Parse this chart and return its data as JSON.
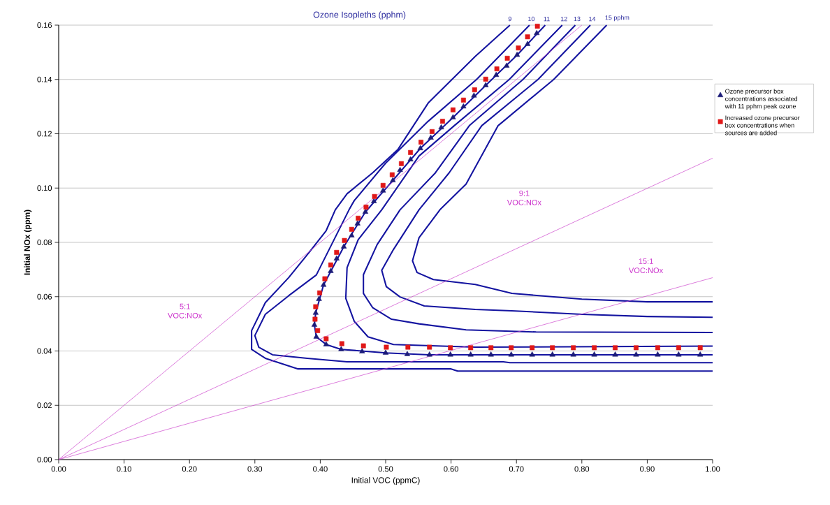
{
  "chart_data": {
    "type": "line",
    "title": "Ozone Isopleths (pphm)",
    "xlabel": "Initial VOC (ppmC)",
    "ylabel": "Initial NOx (ppm)",
    "xlim": [
      0,
      1
    ],
    "ylim": [
      0,
      0.16
    ],
    "xticks": [
      {
        "value": 0,
        "label": "0.00"
      },
      {
        "value": 0.1,
        "label": "0.10"
      },
      {
        "value": 0.2,
        "label": "0.20"
      },
      {
        "value": 0.3,
        "label": "0.30"
      },
      {
        "value": 0.4,
        "label": "0.40"
      },
      {
        "value": 0.5,
        "label": "0.50"
      },
      {
        "value": 0.6,
        "label": "0.60"
      },
      {
        "value": 0.7,
        "label": "0.70"
      },
      {
        "value": 0.8,
        "label": "0.80"
      },
      {
        "value": 0.9,
        "label": "0.90"
      },
      {
        "value": 1,
        "label": "1.00"
      }
    ],
    "yticks": [
      {
        "value": 0,
        "label": "0.00"
      },
      {
        "value": 0.02,
        "label": "0.02"
      },
      {
        "value": 0.04,
        "label": "0.04"
      },
      {
        "value": 0.06,
        "label": "0.06"
      },
      {
        "value": 0.08,
        "label": "0.08"
      },
      {
        "value": 0.1,
        "label": "0.10"
      },
      {
        "value": 0.12,
        "label": "0.12"
      },
      {
        "value": 0.14,
        "label": "0.14"
      },
      {
        "value": 0.16,
        "label": "0.16"
      }
    ],
    "grid": "y",
    "legend": "right",
    "series": [
      {
        "name": "9",
        "color": "#1414a0",
        "marker": "none",
        "x": [
          0.69,
          0.637,
          0.565,
          0.519,
          0.48,
          0.441,
          0.423,
          0.409,
          0.384,
          0.352,
          0.316,
          0.295,
          0.295,
          0.316,
          0.366,
          0.6,
          0.61,
          1.0
        ],
        "values": [
          0.16,
          0.1485,
          0.1313,
          0.1143,
          0.1056,
          0.0979,
          0.092,
          0.0843,
          0.0766,
          0.0671,
          0.0578,
          0.0475,
          0.0406,
          0.0373,
          0.0334,
          0.0334,
          0.0326,
          0.0326
        ]
      },
      {
        "name": "10",
        "color": "#1414a0",
        "marker": "none",
        "x": [
          0.72,
          0.639,
          0.565,
          0.5,
          0.452,
          0.444,
          0.394,
          0.352,
          0.316,
          0.3,
          0.306,
          0.327,
          0.38,
          0.441,
          0.68,
          0.69,
          1.0
        ],
        "values": [
          0.16,
          0.14,
          0.1246,
          0.1092,
          0.0954,
          0.092,
          0.068,
          0.0604,
          0.0535,
          0.0457,
          0.0414,
          0.0386,
          0.0373,
          0.036,
          0.036,
          0.0357,
          0.0357
        ]
      },
      {
        "name": "11",
        "color": "#1414a0",
        "marker": "none",
        "x": [
          0.744,
          0.701,
          0.653,
          0.603,
          0.553,
          0.511,
          0.469,
          0.436,
          0.405,
          0.393,
          0.391,
          0.394,
          0.409,
          0.432,
          0.5,
          0.567,
          1.0
        ],
        "values": [
          0.16,
          0.149,
          0.1378,
          0.126,
          0.1146,
          0.1028,
          0.0912,
          0.0784,
          0.0643,
          0.054,
          0.0496,
          0.0452,
          0.0424,
          0.0406,
          0.0393,
          0.0386,
          0.0386
        ]
      },
      {
        "name": "12",
        "color": "#1414a0",
        "marker": "none",
        "x": [
          0.77,
          0.689,
          0.605,
          0.551,
          0.494,
          0.458,
          0.441,
          0.439,
          0.452,
          0.473,
          0.512,
          0.637,
          1.0
        ],
        "values": [
          0.16,
          0.14,
          0.123,
          0.1118,
          0.092,
          0.081,
          0.0707,
          0.0594,
          0.0509,
          0.0452,
          0.0424,
          0.0414,
          0.0418
        ]
      },
      {
        "name": "13",
        "color": "#1414a0",
        "marker": "none",
        "x": [
          0.79,
          0.71,
          0.628,
          0.576,
          0.522,
          0.487,
          0.466,
          0.466,
          0.48,
          0.509,
          0.551,
          0.623,
          0.73,
          1.0
        ],
        "values": [
          0.16,
          0.14,
          0.123,
          0.1056,
          0.092,
          0.0792,
          0.0681,
          0.0612,
          0.056,
          0.0517,
          0.05,
          0.0478,
          0.047,
          0.0468
        ]
      },
      {
        "name": "14",
        "color": "#1414a0",
        "marker": "none",
        "x": [
          0.813,
          0.733,
          0.647,
          0.597,
          0.551,
          0.512,
          0.494,
          0.501,
          0.522,
          0.559,
          0.637,
          0.693,
          0.8,
          0.9,
          1.0
        ],
        "values": [
          0.16,
          0.14,
          0.123,
          0.1056,
          0.092,
          0.0774,
          0.0697,
          0.0637,
          0.0599,
          0.0566,
          0.0553,
          0.0548,
          0.0535,
          0.0527,
          0.0524
        ]
      },
      {
        "name": "15 pphm",
        "color": "#1414a0",
        "marker": "none",
        "x": [
          0.838,
          0.757,
          0.672,
          0.623,
          0.583,
          0.551,
          0.541,
          0.548,
          0.573,
          0.637,
          0.693,
          0.8,
          0.9,
          1.0
        ],
        "values": [
          0.16,
          0.14,
          0.123,
          0.1015,
          0.092,
          0.0817,
          0.0732,
          0.0689,
          0.0663,
          0.0645,
          0.0612,
          0.0591,
          0.0581,
          0.0581
        ]
      },
      {
        "color": "#cc44cc",
        "marker": "none",
        "x": [
          0,
          0.8
        ],
        "values": [
          0,
          0.16
        ]
      },
      {
        "color": "#cc44cc",
        "marker": "none",
        "x": [
          0,
          1
        ],
        "values": [
          0,
          0.111
        ]
      },
      {
        "color": "#cc44cc",
        "marker": "none",
        "x": [
          0,
          1
        ],
        "values": [
          0,
          0.067
        ]
      },
      {
        "name": "Ozone precursor box concentrations associated with 11 pphm peak ozone",
        "type": "scatter",
        "color": "#1c1c78",
        "marker": "triangle",
        "x": [
          0.731,
          0.717,
          0.701,
          0.685,
          0.669,
          0.653,
          0.635,
          0.619,
          0.603,
          0.585,
          0.569,
          0.553,
          0.538,
          0.522,
          0.511,
          0.496,
          0.482,
          0.469,
          0.457,
          0.448,
          0.436,
          0.425,
          0.416,
          0.405,
          0.398,
          0.393,
          0.391,
          0.394,
          0.409,
          0.432,
          0.464,
          0.5,
          0.533,
          0.567,
          0.599,
          0.63,
          0.661,
          0.692,
          0.724,
          0.755,
          0.787,
          0.819,
          0.851,
          0.883,
          0.916,
          0.948,
          0.981
        ],
        "values": [
          0.157,
          0.153,
          0.149,
          0.145,
          0.1416,
          0.1378,
          0.134,
          0.13,
          0.126,
          0.1223,
          0.1185,
          0.1146,
          0.1105,
          0.1066,
          0.1028,
          0.099,
          0.0951,
          0.0912,
          0.0869,
          0.0825,
          0.0784,
          0.074,
          0.0694,
          0.0643,
          0.0591,
          0.054,
          0.0496,
          0.0452,
          0.0424,
          0.0406,
          0.0398,
          0.0393,
          0.0388,
          0.0386,
          0.0386,
          0.0386,
          0.0386,
          0.0386,
          0.0386,
          0.0386,
          0.0386,
          0.0386,
          0.0386,
          0.0386,
          0.0386,
          0.0386,
          0.0386
        ]
      },
      {
        "name": "Increased ozone precursor box concentrations when sources are added",
        "type": "scatter",
        "color": "#e01818",
        "marker": "square",
        "x": [
          0.732,
          0.717,
          0.703,
          0.686,
          0.67,
          0.653,
          0.636,
          0.619,
          0.603,
          0.587,
          0.571,
          0.554,
          0.538,
          0.524,
          0.51,
          0.496,
          0.483,
          0.47,
          0.458,
          0.448,
          0.437,
          0.425,
          0.416,
          0.407,
          0.399,
          0.393,
          0.392,
          0.396,
          0.409,
          0.433,
          0.466,
          0.501,
          0.534,
          0.567,
          0.599,
          0.63,
          0.661,
          0.692,
          0.724,
          0.755,
          0.787,
          0.819,
          0.851,
          0.883,
          0.916,
          0.948,
          0.981
        ],
        "values": [
          0.1596,
          0.1557,
          0.1516,
          0.1478,
          0.1439,
          0.1401,
          0.1362,
          0.1324,
          0.1288,
          0.1246,
          0.1208,
          0.1169,
          0.1131,
          0.109,
          0.1049,
          0.101,
          0.0969,
          0.093,
          0.0889,
          0.0848,
          0.0807,
          0.0763,
          0.0717,
          0.0666,
          0.0614,
          0.0563,
          0.0517,
          0.0475,
          0.0445,
          0.0427,
          0.0419,
          0.0414,
          0.0414,
          0.0414,
          0.0412,
          0.0412,
          0.0412,
          0.0412,
          0.0412,
          0.0412,
          0.0412,
          0.0412,
          0.0412,
          0.0412,
          0.0412,
          0.0412,
          0.0412
        ]
      }
    ],
    "annotations": [
      "5:1 VOC:NOx",
      "9:1 VOC:NOx",
      "15:1 VOC:NOx"
    ]
  }
}
